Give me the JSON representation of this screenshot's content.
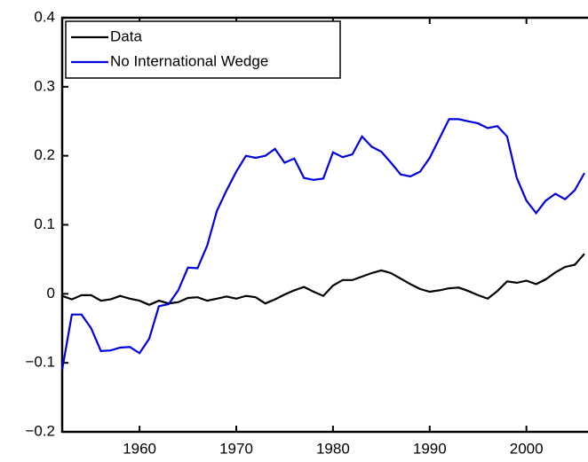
{
  "chart_data": {
    "type": "line",
    "x": [
      1952,
      1953,
      1954,
      1955,
      1956,
      1957,
      1958,
      1959,
      1960,
      1961,
      1962,
      1963,
      1964,
      1965,
      1966,
      1967,
      1968,
      1969,
      1970,
      1971,
      1972,
      1973,
      1974,
      1975,
      1976,
      1977,
      1978,
      1979,
      1980,
      1981,
      1982,
      1983,
      1984,
      1985,
      1986,
      1987,
      1988,
      1989,
      1990,
      1991,
      1992,
      1993,
      1994,
      1995,
      1996,
      1997,
      1998,
      1999,
      2000,
      2001,
      2002,
      2003,
      2004,
      2005,
      2006
    ],
    "series": [
      {
        "name": "Data",
        "color": "#000000",
        "values": [
          -0.003,
          -0.008,
          -0.002,
          -0.002,
          -0.01,
          -0.008,
          -0.003,
          -0.007,
          -0.01,
          -0.016,
          -0.01,
          -0.014,
          -0.012,
          -0.006,
          -0.005,
          -0.01,
          -0.007,
          -0.004,
          -0.007,
          -0.003,
          -0.005,
          -0.014,
          -0.008,
          -0.001,
          0.005,
          0.01,
          0.003,
          -0.003,
          0.012,
          0.02,
          0.02,
          0.025,
          0.03,
          0.034,
          0.03,
          0.022,
          0.014,
          0.007,
          0.003,
          0.005,
          0.008,
          0.009,
          0.004,
          -0.002,
          -0.007,
          0.004,
          0.018,
          0.016,
          0.019,
          0.014,
          0.021,
          0.031,
          0.039,
          0.042,
          0.058
        ]
      },
      {
        "name": "No International Wedge",
        "color": "#0000dd",
        "values": [
          -0.11,
          -0.03,
          -0.03,
          -0.05,
          -0.083,
          -0.082,
          -0.078,
          -0.077,
          -0.086,
          -0.065,
          -0.018,
          -0.015,
          0.005,
          0.038,
          0.037,
          0.07,
          0.12,
          0.15,
          0.177,
          0.2,
          0.197,
          0.2,
          0.21,
          0.19,
          0.196,
          0.168,
          0.165,
          0.167,
          0.205,
          0.198,
          0.202,
          0.228,
          0.213,
          0.206,
          0.19,
          0.173,
          0.17,
          0.177,
          0.197,
          0.225,
          0.253,
          0.253,
          0.25,
          0.247,
          0.24,
          0.243,
          0.228,
          0.168,
          0.135,
          0.117,
          0.135,
          0.145,
          0.137,
          0.15,
          0.175
        ]
      }
    ],
    "xlim": [
      1952,
      2006
    ],
    "ylim": [
      -0.2,
      0.4
    ],
    "xticks": [
      1960,
      1970,
      1980,
      1990,
      2000
    ],
    "yticks": [
      {
        "value": -0.2,
        "label": "−0.2"
      },
      {
        "value": -0.1,
        "label": "−0.1"
      },
      0,
      0.1,
      0.2,
      0.3,
      0.4
    ],
    "legend": "upper left"
  }
}
